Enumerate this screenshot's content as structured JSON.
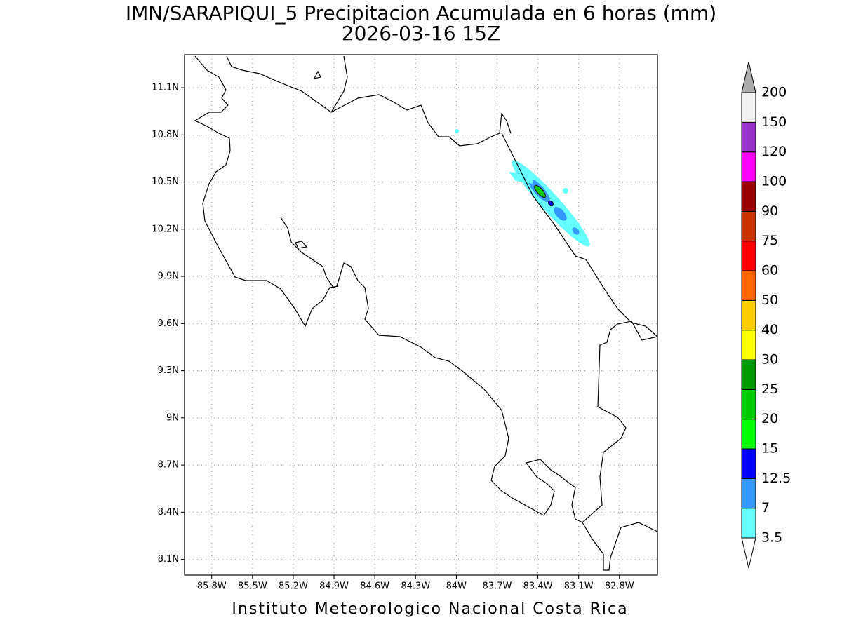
{
  "chart_data": {
    "type": "map",
    "title": "IMN/SARAPIQUI_5 Precipitacion Acumulada en 6 horas (mm)",
    "subtitle": "2026-03-16 15Z",
    "footer": "Instituto Meteorologico Nacional Costa Rica",
    "xlim": [
      -86.0,
      -82.52
    ],
    "ylim": [
      8.0,
      11.31
    ],
    "xticks": [
      {
        "value": -85.8,
        "label": "85.8W"
      },
      {
        "value": -85.5,
        "label": "85.5W"
      },
      {
        "value": -85.2,
        "label": "85.2W"
      },
      {
        "value": -84.9,
        "label": "84.9W"
      },
      {
        "value": -84.6,
        "label": "84.6W"
      },
      {
        "value": -84.3,
        "label": "84.3W"
      },
      {
        "value": -84.0,
        "label": "84W"
      },
      {
        "value": -83.7,
        "label": "83.7W"
      },
      {
        "value": -83.4,
        "label": "83.4W"
      },
      {
        "value": -83.1,
        "label": "83.1W"
      },
      {
        "value": -82.8,
        "label": "82.8W"
      }
    ],
    "yticks": [
      {
        "value": 8.1,
        "label": "8.1N"
      },
      {
        "value": 8.4,
        "label": "8.4N"
      },
      {
        "value": 8.7,
        "label": "8.7N"
      },
      {
        "value": 9.0,
        "label": "9N"
      },
      {
        "value": 9.3,
        "label": "9.3N"
      },
      {
        "value": 9.6,
        "label": "9.6N"
      },
      {
        "value": 9.9,
        "label": "9.9N"
      },
      {
        "value": 10.2,
        "label": "10.2N"
      },
      {
        "value": 10.5,
        "label": "10.5N"
      },
      {
        "value": 10.8,
        "label": "10.8N"
      },
      {
        "value": 11.1,
        "label": "11.1N"
      }
    ],
    "grid": true,
    "colorbar": {
      "levels": [
        3.5,
        7,
        12.5,
        15,
        20,
        25,
        30,
        40,
        50,
        60,
        75,
        90,
        100,
        120,
        150,
        200
      ],
      "colors": [
        "#ffffff",
        "#66ffff",
        "#3399ff",
        "#0000ff",
        "#00ff00",
        "#00cc00",
        "#009900",
        "#ffff00",
        "#ffcc00",
        "#ff6600",
        "#ff0000",
        "#cc3300",
        "#990000",
        "#ff00ff",
        "#9933cc",
        "#f2f2f2",
        "#aaaaaa"
      ]
    }
  }
}
